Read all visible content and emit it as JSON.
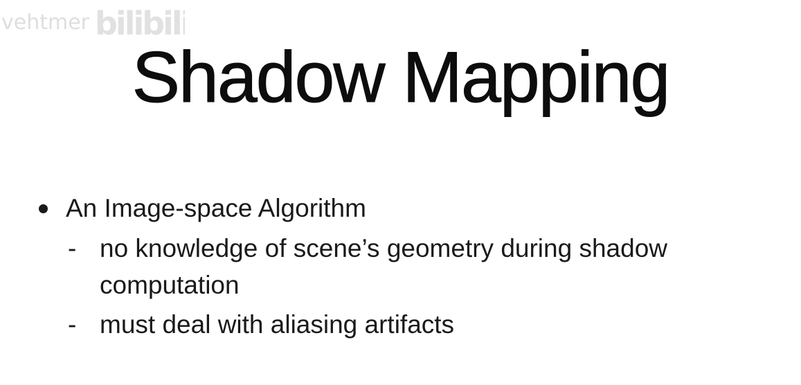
{
  "watermark": {
    "user": "vehtmer",
    "logo_text": "bilibili",
    "color": "#d9d9d9"
  },
  "slide": {
    "title": "Shadow Mapping",
    "bullet": {
      "text": "An Image-space Algorithm",
      "subpoints": [
        {
          "dash": "-",
          "line1": "no knowledge of scene’s geometry during shadow",
          "line2": "computation"
        },
        {
          "dash": "-",
          "line1": "must deal with aliasing artifacts"
        }
      ]
    }
  }
}
